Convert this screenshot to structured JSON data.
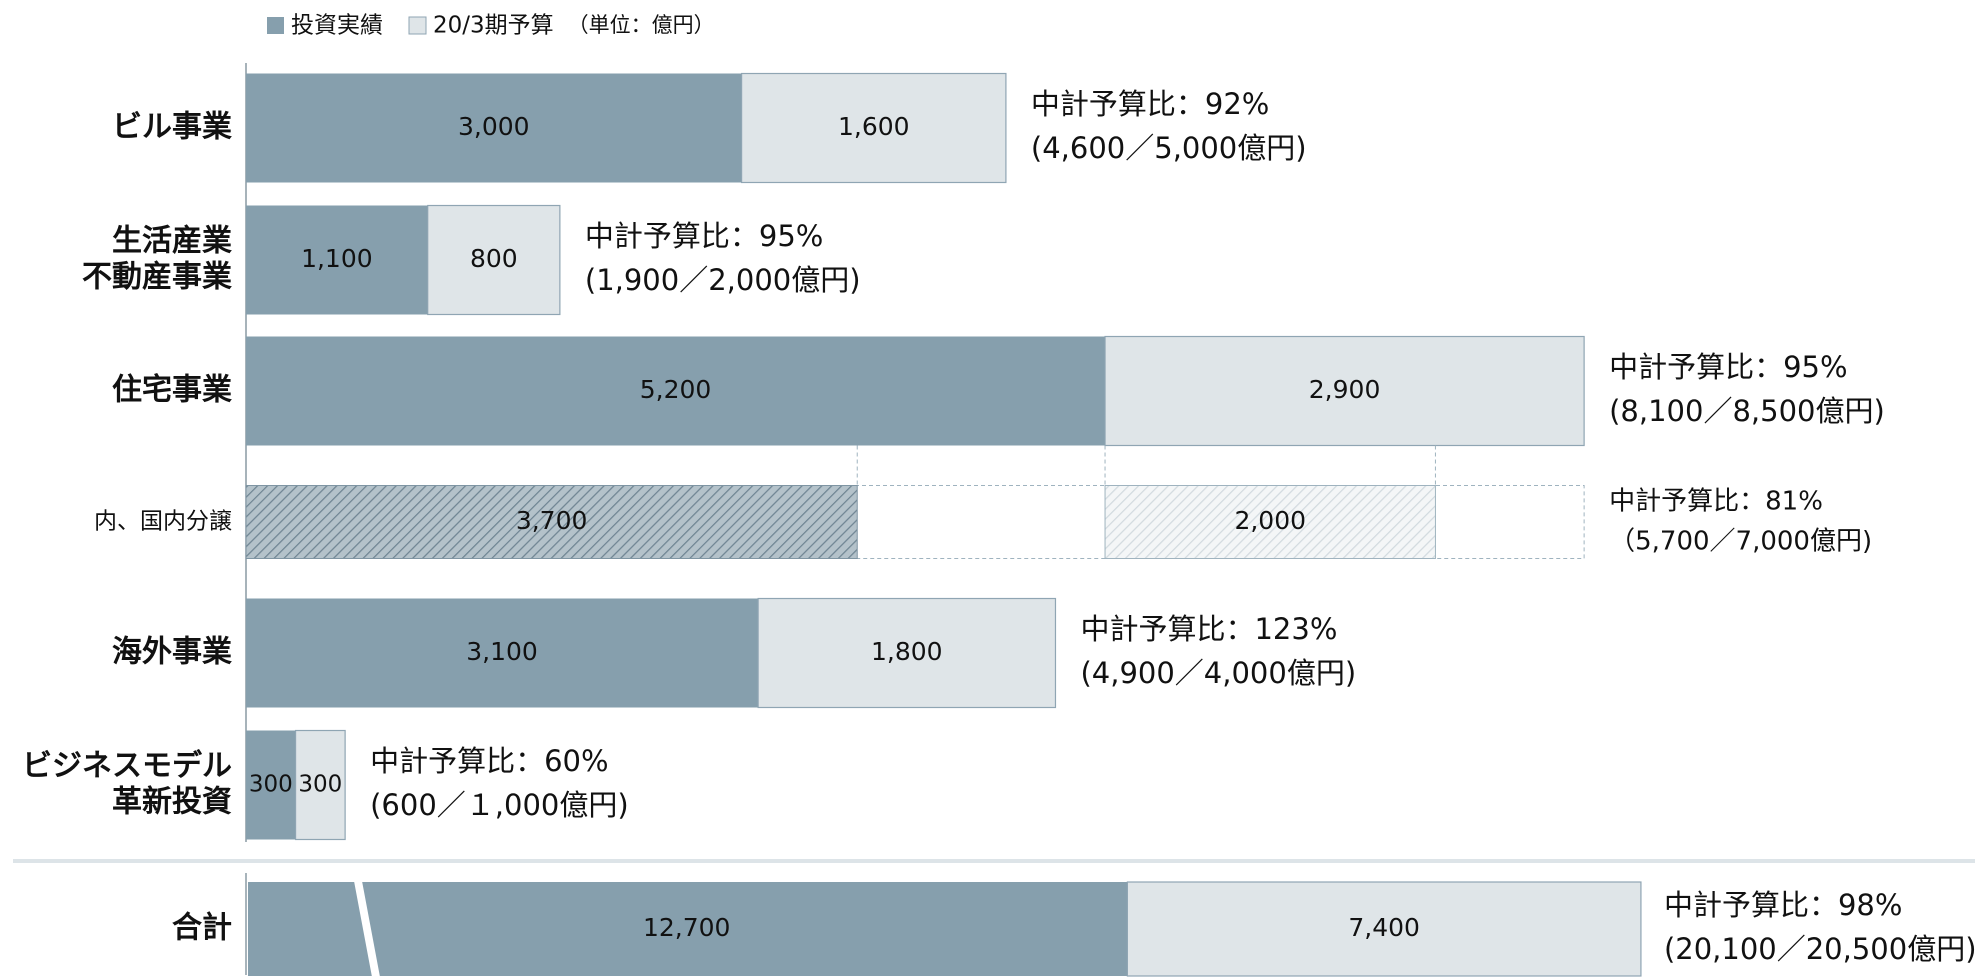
{
  "chart_data": {
    "type": "bar",
    "orientation": "horizontal",
    "stacked": true,
    "unit_note": "（単位：億円）",
    "categories": [
      [
        "ビル事業"
      ],
      [
        "生活産業",
        "不動産事業"
      ],
      [
        "住宅事業"
      ],
      [
        "内、国内分譲"
      ],
      [
        "海外事業"
      ],
      [
        "ビジネスモデル",
        "革新投資"
      ]
    ],
    "series": [
      {
        "name": "投資実績",
        "color": "#869fad",
        "values": [
          3000,
          1100,
          5200,
          3700,
          3100,
          300
        ],
        "value_labels": [
          "3,000",
          "1,100",
          "5,200",
          "3,700",
          "3,100",
          "300"
        ]
      },
      {
        "name": "20/3期予算",
        "color": "#dfe5e8",
        "values": [
          1600,
          800,
          2900,
          2000,
          1800,
          300
        ],
        "value_labels": [
          "1,600",
          "800",
          "2,900",
          "2,000",
          "1,800",
          "300"
        ]
      }
    ],
    "breakdown_of": {
      "row": 3,
      "parent": 2
    },
    "annotations": [
      [
        "中計予算比：92%",
        "(4,600／5,000億円)"
      ],
      [
        "中計予算比：95%",
        "(1,900／2,000億円)"
      ],
      [
        "中計予算比：95%",
        "(8,100／8,500億円)"
      ],
      [
        "中計予算比：81%",
        "（5,700／7,000億円)"
      ],
      [
        "中計予算比：123%",
        "(4,900／4,000億円)"
      ],
      [
        "中計予算比：60%",
        "(600／１,000億円)"
      ]
    ],
    "total": {
      "label": "合計",
      "values": [
        12700,
        7400
      ],
      "value_labels": [
        "12,700",
        "7,400"
      ],
      "annotation": [
        "中計予算比：98%",
        "(20,100／20,500億円)"
      ]
    }
  }
}
